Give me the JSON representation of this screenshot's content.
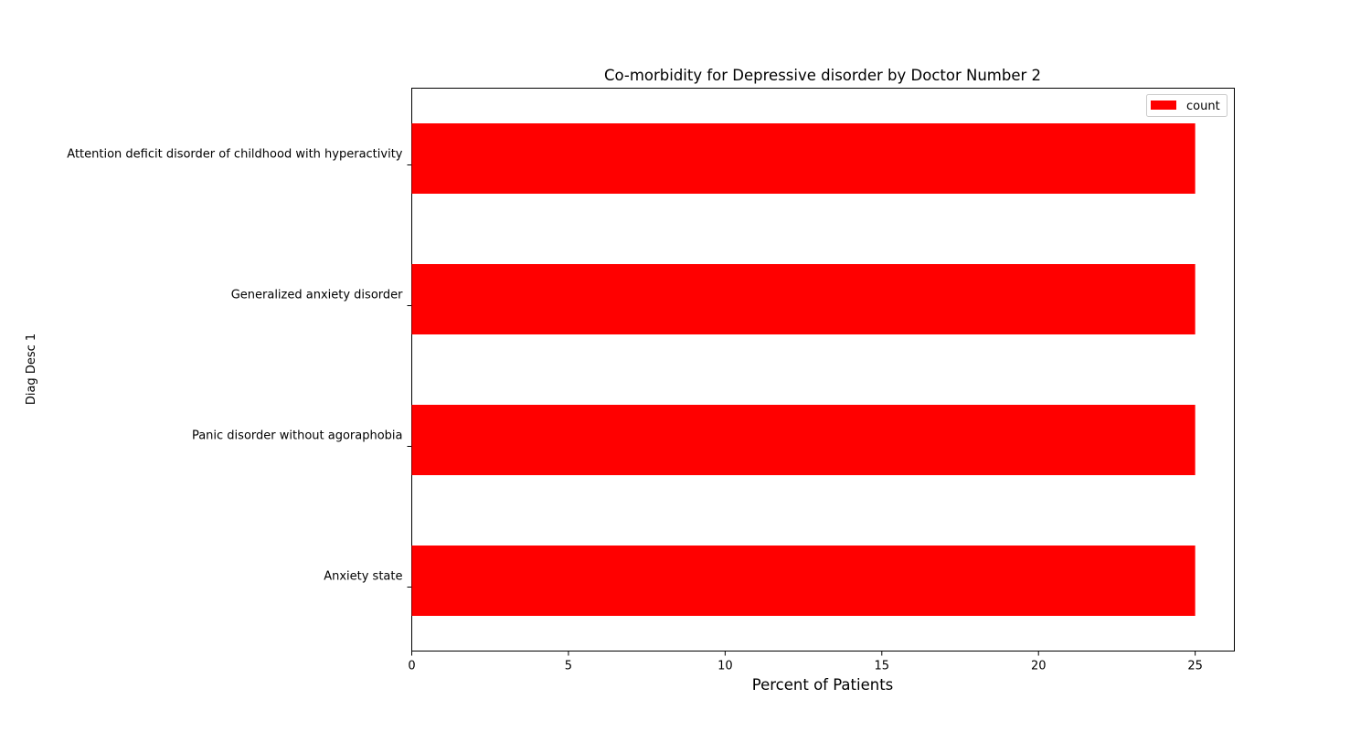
{
  "chart_data": {
    "type": "bar",
    "orientation": "horizontal",
    "title": "Co-morbidity for Depressive disorder by Doctor Number 2",
    "xlabel": "Percent of Patients",
    "ylabel": "Diag Desc 1",
    "categories": [
      "Anxiety state",
      "Panic disorder without agoraphobia",
      "Generalized anxiety disorder",
      "Attention deficit disorder of childhood with hyperactivity"
    ],
    "series": [
      {
        "name": "count",
        "color": "#ff0000",
        "values": [
          25,
          25,
          25,
          25
        ]
      }
    ],
    "xlim": [
      0,
      26.25
    ],
    "xticks": [
      0,
      5,
      10,
      15,
      20,
      25
    ],
    "xtick_labels": [
      "0",
      "5",
      "10",
      "15",
      "20",
      "25"
    ],
    "grid": false,
    "legend_position": "top-right"
  }
}
